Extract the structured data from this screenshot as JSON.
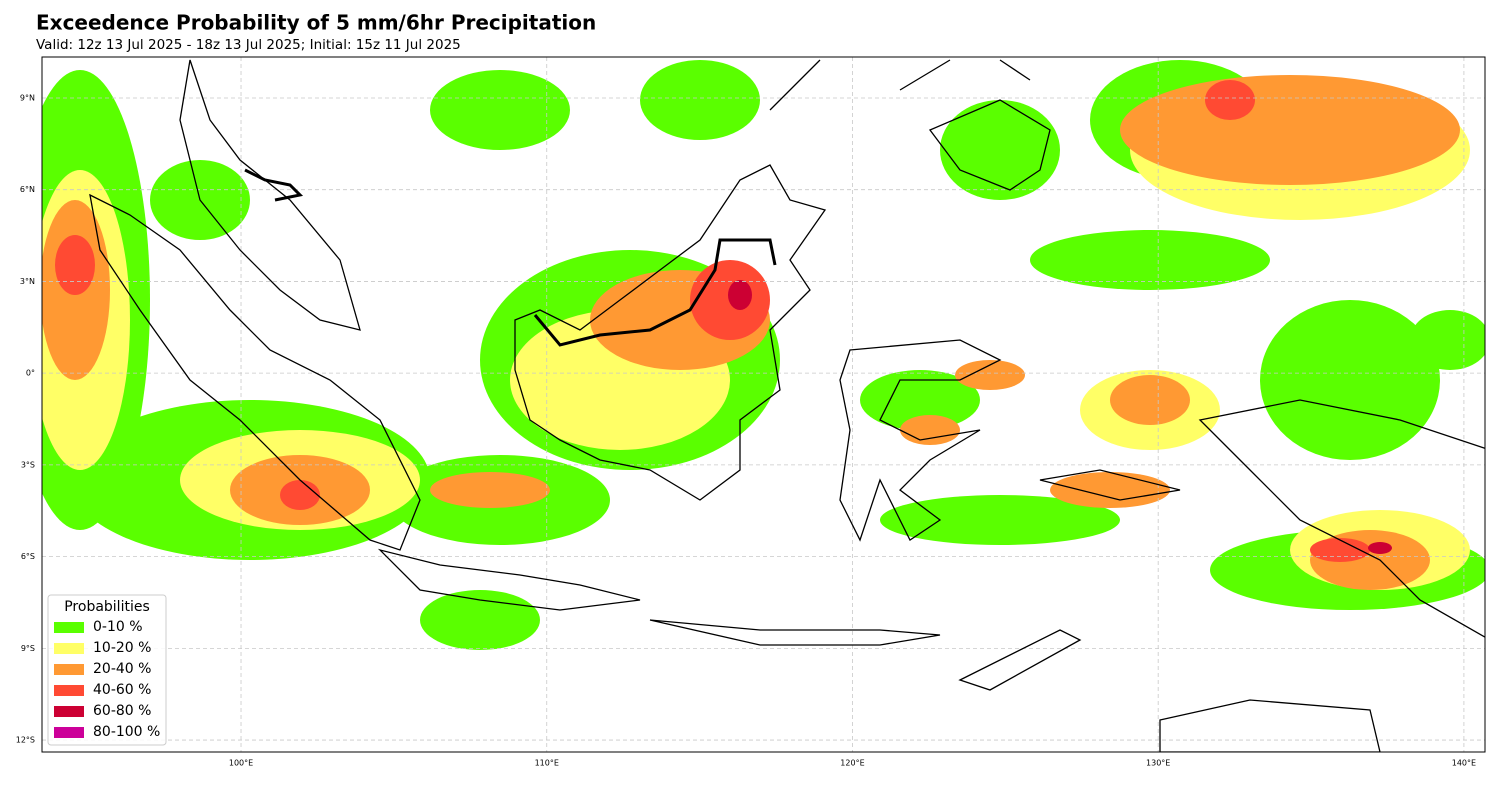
{
  "header": {
    "title": "Exceedence Probability of 5 mm/6hr Precipitation",
    "subtitle": "Valid: 12z 13 Jul 2025 - 18z 13 Jul 2025; Initial: 15z 11 Jul 2025"
  },
  "map": {
    "xlim": [
      93.49,
      140.69
    ],
    "ylim": [
      -12.39,
      10.34
    ],
    "xticks": [
      {
        "value": 100,
        "label": "100°E"
      },
      {
        "value": 110,
        "label": "110°E"
      },
      {
        "value": 120,
        "label": "120°E"
      },
      {
        "value": 130,
        "label": "130°E"
      },
      {
        "value": 140,
        "label": "140°E"
      }
    ],
    "yticks": [
      {
        "value": 9,
        "label": "9°N"
      },
      {
        "value": 6,
        "label": "6°N"
      },
      {
        "value": 3,
        "label": "3°N"
      },
      {
        "value": 0,
        "label": "0°"
      },
      {
        "value": -3,
        "label": "3°S"
      },
      {
        "value": -6,
        "label": "6°S"
      },
      {
        "value": -9,
        "label": "9°S"
      },
      {
        "value": -12,
        "label": "12°S"
      }
    ],
    "grid": true
  },
  "legend": {
    "title": "Probabilities",
    "items": [
      {
        "label": "0-10 %",
        "color": "#5aff00"
      },
      {
        "label": "10-20 %",
        "color": "#ffff66"
      },
      {
        "label": "20-40 %",
        "color": "#ff9933"
      },
      {
        "label": "40-60 %",
        "color": "#ff4a33"
      },
      {
        "label": "60-80 %",
        "color": "#cc0033"
      },
      {
        "label": "80-100 %",
        "color": "#cc0099"
      }
    ]
  }
}
